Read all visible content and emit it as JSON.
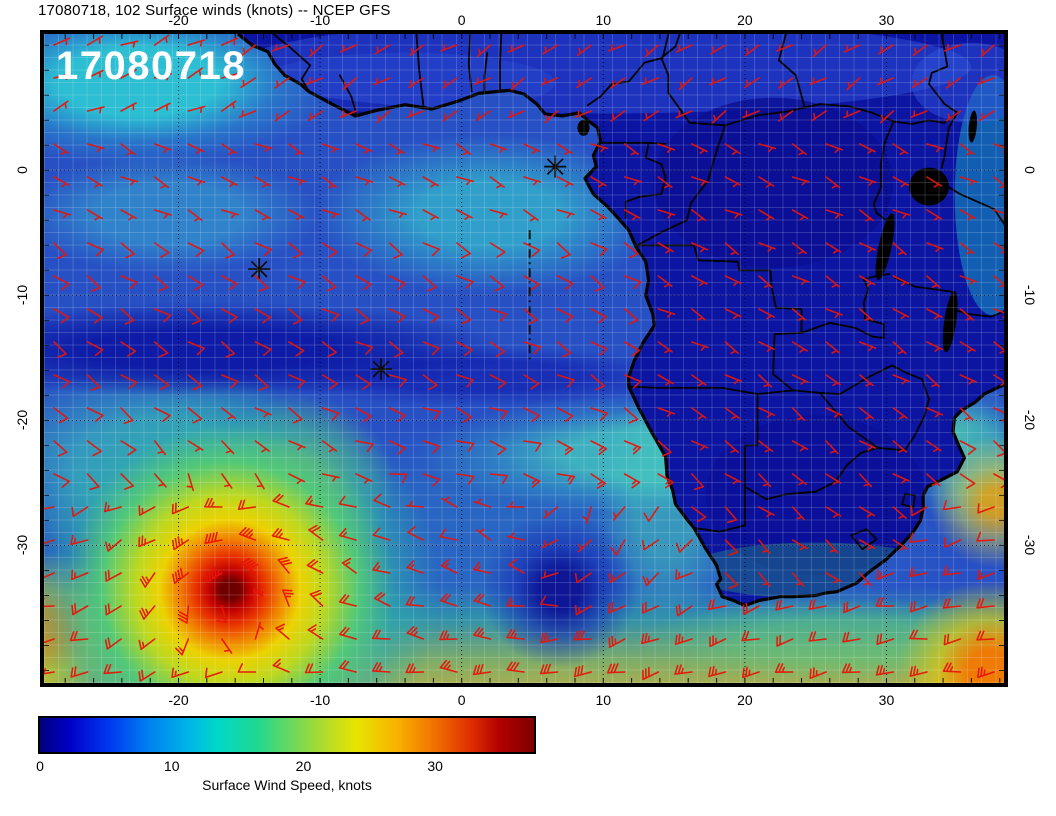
{
  "title": "17080718, 102 Surface winds (knots) -- NCEP GFS",
  "map": {
    "overlay_label": "17080718",
    "axes": {
      "lon_ticks": [
        -20,
        -10,
        0,
        10,
        20,
        30
      ],
      "lat_ticks": [
        0,
        -10,
        -20,
        -30
      ],
      "lon_range": [
        -29.5,
        38.3
      ],
      "lat_range": [
        -41.0,
        10.9
      ]
    },
    "island_markers": [
      {
        "symbol": "asterisk",
        "lon": 6.6,
        "lat": 0.3
      },
      {
        "symbol": "asterisk",
        "lon": -14.3,
        "lat": -7.9
      },
      {
        "symbol": "asterisk",
        "lon": -5.7,
        "lat": -15.9
      }
    ],
    "track_line": {
      "lon": 4.8,
      "lat_from": -4.8,
      "lat_to": -15.2
    },
    "barb_color": "#e81408",
    "coast_color": "#000000",
    "land_base_color": "#0c15a2",
    "ocean_base_color": "#2750c4"
  },
  "colorbar": {
    "label": "Surface Wind Speed, knots",
    "ticks": [
      0,
      10,
      20,
      30
    ],
    "range": [
      0,
      37.5
    ],
    "stops": [
      {
        "v": 0.0,
        "c": "#00007d"
      },
      {
        "v": 0.06,
        "c": "#0000c8"
      },
      {
        "v": 0.14,
        "c": "#0038f0"
      },
      {
        "v": 0.22,
        "c": "#0080f0"
      },
      {
        "v": 0.3,
        "c": "#00b4e8"
      },
      {
        "v": 0.36,
        "c": "#00d8c8"
      },
      {
        "v": 0.44,
        "c": "#20d890"
      },
      {
        "v": 0.52,
        "c": "#78d855"
      },
      {
        "v": 0.58,
        "c": "#b4dc28"
      },
      {
        "v": 0.64,
        "c": "#e8e400"
      },
      {
        "v": 0.72,
        "c": "#f8b400"
      },
      {
        "v": 0.8,
        "c": "#f07000"
      },
      {
        "v": 0.87,
        "c": "#e03000"
      },
      {
        "v": 0.93,
        "c": "#b40000"
      },
      {
        "v": 1.0,
        "c": "#7d0000"
      }
    ]
  },
  "chart_data": {
    "type": "heatmap",
    "title": "17080718, 102 Surface winds (knots) -- NCEP GFS",
    "variable": "Surface Wind Speed",
    "units": "knots",
    "source_model": "NCEP GFS",
    "datetime_label": "17080718",
    "forecast_label": "102",
    "x_axis": {
      "ticks": [
        -20,
        -10,
        0,
        10,
        20,
        30
      ],
      "range": [
        -29.5,
        38.3
      ]
    },
    "y_axis": {
      "ticks": [
        0,
        -10,
        -20,
        -30
      ],
      "range": [
        -41.0,
        10.9
      ]
    },
    "colorbar": {
      "label": "Surface Wind Speed, knots",
      "ticks": [
        0,
        10,
        20,
        30
      ],
      "range": [
        0,
        37.5
      ]
    },
    "overlay": {
      "wind_barbs": true,
      "barb_color": "red",
      "grid": "dotted 10-degree graticule"
    },
    "markers": [
      {
        "symbol": "asterisk",
        "lon": 6.6,
        "lat": 0.3
      },
      {
        "symbol": "asterisk",
        "lon": -14.3,
        "lat": -7.9
      },
      {
        "symbol": "asterisk",
        "lon": -5.7,
        "lat": -15.9
      }
    ],
    "notable_features": [
      {
        "feature": "intense cyclone with peak winds ~35 knots",
        "lon": -16,
        "lat": -33.5
      },
      {
        "feature": "calm center (South Atlantic high), winds < 5 knots",
        "lon": 7,
        "lat": -33.5
      },
      {
        "feature": "southeast trade winds ~10-15 knots over tropical South Atlantic"
      },
      {
        "feature": "light winds < 8 knots over interior Africa"
      },
      {
        "feature": "strong westerlies 20-30 knots along southern edge of domain"
      }
    ]
  }
}
